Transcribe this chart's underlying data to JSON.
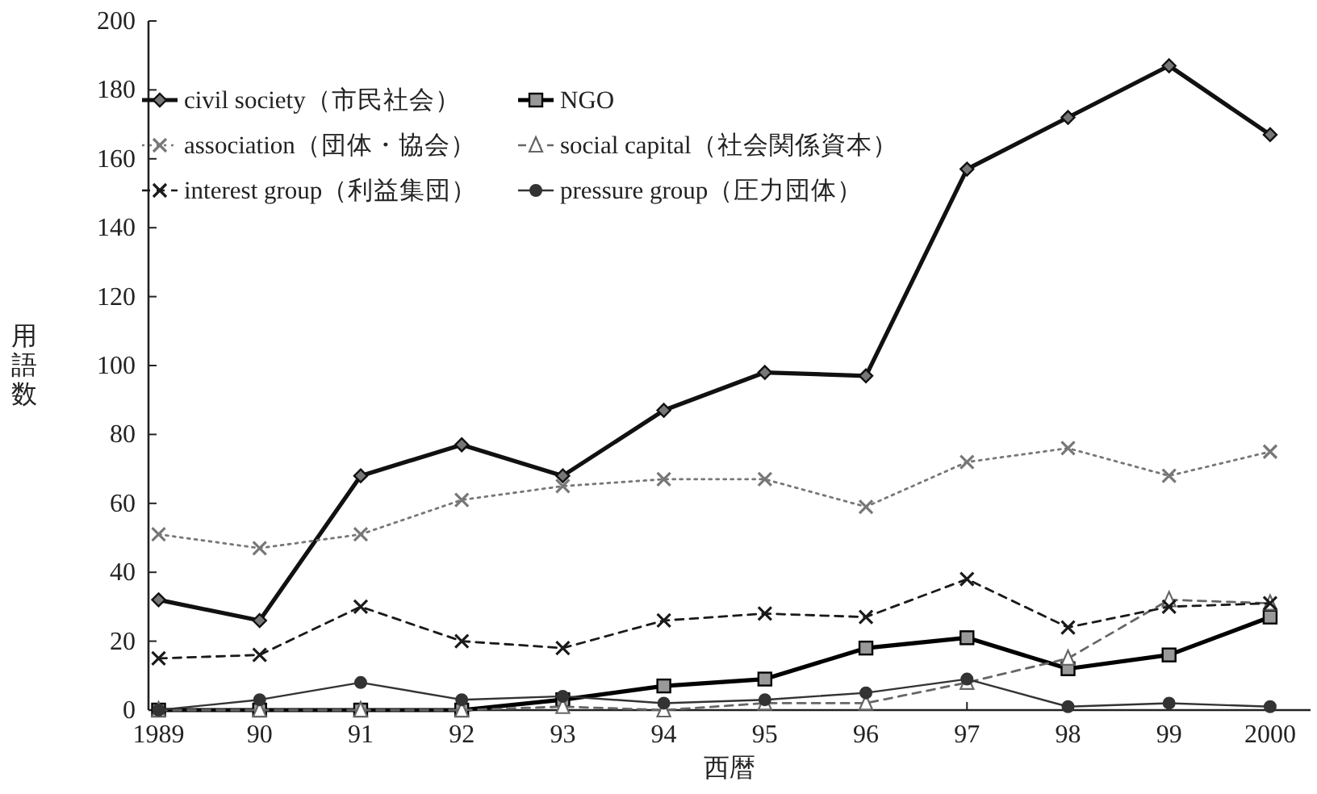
{
  "chart_data": {
    "type": "line",
    "ylabel": "用語数",
    "xlabel": "西暦",
    "x": [
      1989,
      1990,
      1991,
      1992,
      1993,
      1994,
      1995,
      1996,
      1997,
      1998,
      1999,
      2000
    ],
    "xlim": [
      1988.9,
      2000.4
    ],
    "xticks": [
      1989,
      {
        "value": 1990,
        "label": "90"
      },
      {
        "value": 1991,
        "label": "91"
      },
      {
        "value": 1992,
        "label": "92"
      },
      {
        "value": 1993,
        "label": "93"
      },
      {
        "value": 1994,
        "label": "94"
      },
      {
        "value": 1995,
        "label": "95"
      },
      {
        "value": 1996,
        "label": "96"
      },
      {
        "value": 1997,
        "label": "97"
      },
      {
        "value": 1998,
        "label": "98"
      },
      {
        "value": 1999,
        "label": "99"
      },
      2000
    ],
    "ylim": [
      0,
      200
    ],
    "yticks": [
      0,
      20,
      40,
      60,
      80,
      100,
      120,
      140,
      160,
      180,
      200
    ],
    "grid": false,
    "legend": "top left",
    "series": [
      {
        "name": "civil society（市民社会）",
        "color": "#111111",
        "marker": "diamond",
        "line_style": "solid",
        "values": [
          32,
          26,
          68,
          77,
          68,
          87,
          98,
          97,
          157,
          172,
          187,
          167
        ]
      },
      {
        "name": "NGO",
        "color": "#000000",
        "marker": "square",
        "line_style": "solid",
        "values": [
          0,
          0,
          0,
          0,
          3,
          7,
          9,
          18,
          21,
          12,
          16,
          27
        ]
      },
      {
        "name": "association（団体・協会）",
        "color": "#777777",
        "marker": "cross",
        "line_style": "dotted",
        "values": [
          51,
          47,
          51,
          61,
          65,
          67,
          67,
          59,
          72,
          76,
          68,
          75
        ]
      },
      {
        "name": "social capital（社会関係資本）",
        "color": "#666666",
        "marker": "triangle",
        "line_style": "dashed",
        "values": [
          0,
          0,
          0,
          0,
          1,
          0,
          2,
          2,
          8,
          15,
          32,
          31
        ]
      },
      {
        "name": "interest group（利益集団）",
        "color": "#1a1a1a",
        "marker": "cross",
        "line_style": "dashed",
        "values": [
          15,
          16,
          30,
          20,
          18,
          26,
          28,
          27,
          38,
          24,
          30,
          31
        ]
      },
      {
        "name": "pressure group（圧力団体）",
        "color": "#333333",
        "marker": "circle",
        "line_style": "solid",
        "values": [
          0,
          3,
          8,
          3,
          4,
          2,
          3,
          5,
          9,
          1,
          2,
          1
        ]
      }
    ]
  }
}
